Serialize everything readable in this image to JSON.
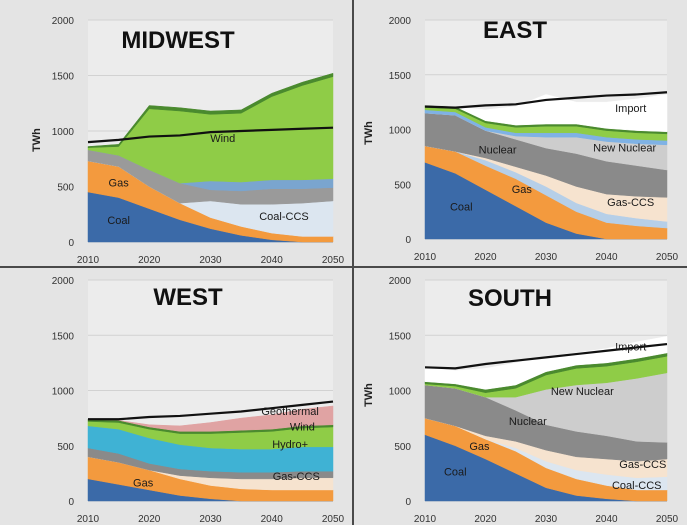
{
  "chart_data": [
    {
      "type": "area",
      "title": "MIDWEST",
      "ylabel": "TWh",
      "ylim": [
        0,
        2000
      ],
      "xlim": [
        2010,
        2050
      ],
      "x_ticks": [
        2010,
        2020,
        2030,
        2040,
        2050
      ],
      "y_ticks": [
        0,
        500,
        1000,
        1500,
        2000
      ],
      "x": [
        2010,
        2015,
        2020,
        2025,
        2030,
        2035,
        2040,
        2045,
        2050
      ],
      "series": [
        {
          "name": "Coal",
          "color": "#3b6aa8",
          "values": [
            450,
            400,
            300,
            200,
            120,
            60,
            20,
            0,
            0
          ]
        },
        {
          "name": "Gas",
          "color": "#f39a3e",
          "values": [
            280,
            280,
            200,
            150,
            100,
            80,
            60,
            50,
            50
          ]
        },
        {
          "name": "Coal-CCS",
          "color": "#dce6f0",
          "values": [
            0,
            0,
            0,
            0,
            150,
            200,
            260,
            300,
            320
          ]
        },
        {
          "color": "#9a9a9a",
          "values": [
            100,
            100,
            150,
            180,
            100,
            120,
            140,
            130,
            120
          ]
        },
        {
          "color": "#7aa5cf",
          "values": [
            0,
            0,
            0,
            0,
            80,
            80,
            80,
            80,
            80
          ]
        },
        {
          "name": "Wind",
          "color": "#8fcc47",
          "values": [
            20,
            80,
            550,
            650,
            600,
            620,
            750,
            850,
            920
          ]
        },
        {
          "color": "#4a8a2e",
          "values": [
            10,
            20,
            30,
            30,
            30,
            30,
            30,
            30,
            30
          ]
        }
      ],
      "demand": [
        900,
        920,
        950,
        960,
        990,
        1000,
        1010,
        1020,
        1030
      ],
      "labels": [
        {
          "text": "Wind",
          "x": 2032,
          "y": 900
        },
        {
          "text": "Gas",
          "x": 2015,
          "y": 500
        },
        {
          "text": "Coal",
          "x": 2015,
          "y": 160
        },
        {
          "text": "Coal-CCS",
          "x": 2042,
          "y": 200
        }
      ]
    },
    {
      "type": "area",
      "title": "EAST",
      "ylabel": "TWh",
      "ylim": [
        0,
        2000
      ],
      "xlim": [
        2010,
        2050
      ],
      "x_ticks": [
        2010,
        2020,
        2030,
        2040,
        2050
      ],
      "y_ticks": [
        0,
        500,
        1000,
        1500,
        2000
      ],
      "x": [
        2010,
        2015,
        2020,
        2025,
        2030,
        2035,
        2040,
        2045,
        2050
      ],
      "series": [
        {
          "name": "Coal",
          "color": "#3b6aa8",
          "values": [
            700,
            600,
            450,
            300,
            150,
            50,
            0,
            0,
            0
          ]
        },
        {
          "name": "Gas",
          "color": "#f39a3e",
          "values": [
            150,
            200,
            220,
            250,
            250,
            200,
            150,
            120,
            100
          ]
        },
        {
          "color": "#b6cfe8",
          "values": [
            0,
            0,
            50,
            60,
            80,
            80,
            80,
            70,
            60
          ]
        },
        {
          "name": "Gas-CCS",
          "color": "#f6e3cf",
          "values": [
            0,
            0,
            20,
            50,
            100,
            150,
            180,
            200,
            220
          ]
        },
        {
          "name": "Nuclear",
          "color": "#8a8a8a",
          "values": [
            300,
            330,
            250,
            250,
            250,
            300,
            300,
            280,
            250
          ]
        },
        {
          "name": "New Nuclear",
          "color": "#cdcdcd",
          "values": [
            0,
            0,
            0,
            30,
            100,
            150,
            180,
            200,
            230
          ]
        },
        {
          "color": "#7fb2e5",
          "values": [
            30,
            30,
            30,
            30,
            40,
            40,
            40,
            40,
            40
          ]
        },
        {
          "color": "#8fcc47",
          "values": [
            20,
            30,
            40,
            50,
            60,
            60,
            60,
            60,
            60
          ]
        },
        {
          "color": "#4a8a2e",
          "values": [
            20,
            20,
            20,
            20,
            20,
            20,
            20,
            20,
            20
          ]
        },
        {
          "name": "Import",
          "color": "#ffffff",
          "values": [
            0,
            0,
            100,
            170,
            270,
            200,
            240,
            290,
            340
          ]
        }
      ],
      "demand": [
        1210,
        1200,
        1220,
        1230,
        1270,
        1290,
        1310,
        1320,
        1340
      ],
      "labels": [
        {
          "text": "Import",
          "x": 2044,
          "y": 1160
        },
        {
          "text": "Nuclear",
          "x": 2022,
          "y": 780
        },
        {
          "text": "New Nuclear",
          "x": 2043,
          "y": 800
        },
        {
          "text": "Gas",
          "x": 2026,
          "y": 420
        },
        {
          "text": "Coal",
          "x": 2016,
          "y": 260
        },
        {
          "text": "Gas-CCS",
          "x": 2044,
          "y": 300
        }
      ]
    },
    {
      "type": "area",
      "title": "WEST",
      "ylabel": "",
      "ylim": [
        0,
        2000
      ],
      "xlim": [
        2010,
        2050
      ],
      "x_ticks": [
        2010,
        2020,
        2030,
        2040,
        2050
      ],
      "y_ticks": [
        0,
        500,
        1000,
        1500,
        2000
      ],
      "x": [
        2010,
        2015,
        2020,
        2025,
        2030,
        2035,
        2040,
        2045,
        2050
      ],
      "series": [
        {
          "color": "#3b6aa8",
          "values": [
            200,
            150,
            100,
            50,
            20,
            0,
            0,
            0,
            0
          ]
        },
        {
          "name": "Gas",
          "color": "#f39a3e",
          "values": [
            200,
            200,
            180,
            150,
            120,
            110,
            100,
            100,
            100
          ]
        },
        {
          "name": "Gas-CCS",
          "color": "#f6e3cf",
          "values": [
            0,
            0,
            0,
            30,
            70,
            90,
            100,
            110,
            110
          ]
        },
        {
          "color": "#8a8a8a",
          "values": [
            80,
            80,
            60,
            60,
            60,
            60,
            60,
            60,
            60
          ]
        },
        {
          "name": "Hydro+",
          "color": "#3fb2d4",
          "values": [
            200,
            220,
            230,
            220,
            210,
            210,
            210,
            220,
            220
          ]
        },
        {
          "name": "Wind",
          "color": "#8fcc47",
          "values": [
            40,
            60,
            80,
            100,
            130,
            150,
            160,
            170,
            180
          ]
        },
        {
          "color": "#4a8a2e",
          "values": [
            20,
            20,
            20,
            20,
            20,
            20,
            20,
            20,
            20
          ]
        },
        {
          "name": "Geothermal",
          "color": "#e0a3a3",
          "values": [
            0,
            0,
            20,
            50,
            80,
            110,
            130,
            150,
            170
          ]
        }
      ],
      "demand": [
        740,
        740,
        760,
        770,
        790,
        810,
        840,
        870,
        900
      ],
      "labels": [
        {
          "text": "Geothermal",
          "x": 2043,
          "y": 780
        },
        {
          "text": "Wind",
          "x": 2045,
          "y": 640
        },
        {
          "text": "Hydro+",
          "x": 2043,
          "y": 480
        },
        {
          "text": "Gas",
          "x": 2019,
          "y": 130
        },
        {
          "text": "Gas-CCS",
          "x": 2044,
          "y": 190
        }
      ]
    },
    {
      "type": "area",
      "title": "SOUTH",
      "ylabel": "TWh",
      "ylim": [
        0,
        2000
      ],
      "xlim": [
        2010,
        2050
      ],
      "x_ticks": [
        2010,
        2020,
        2030,
        2040,
        2050
      ],
      "y_ticks": [
        0,
        500,
        1000,
        1500,
        2000
      ],
      "x": [
        2010,
        2015,
        2020,
        2025,
        2030,
        2035,
        2040,
        2045,
        2050
      ],
      "series": [
        {
          "name": "Coal",
          "color": "#3b6aa8",
          "values": [
            600,
            500,
            380,
            250,
            120,
            50,
            20,
            0,
            0
          ]
        },
        {
          "name": "Gas",
          "color": "#f39a3e",
          "values": [
            150,
            180,
            180,
            200,
            180,
            150,
            120,
            100,
            100
          ]
        },
        {
          "name": "Coal-CCS",
          "color": "#dce6f0",
          "values": [
            0,
            0,
            0,
            30,
            60,
            80,
            100,
            110,
            120
          ]
        },
        {
          "name": "Gas-CCS",
          "color": "#f6e3cf",
          "values": [
            0,
            0,
            30,
            60,
            100,
            120,
            140,
            150,
            160
          ]
        },
        {
          "name": "Nuclear",
          "color": "#8a8a8a",
          "values": [
            300,
            340,
            350,
            280,
            230,
            230,
            210,
            180,
            150
          ]
        },
        {
          "name": "New Nuclear",
          "color": "#cdcdcd",
          "values": [
            0,
            0,
            0,
            120,
            320,
            420,
            480,
            570,
            630
          ]
        },
        {
          "color": "#8fcc47",
          "values": [
            10,
            20,
            40,
            80,
            130,
            150,
            150,
            150,
            150
          ]
        },
        {
          "color": "#4a8a2e",
          "values": [
            20,
            20,
            30,
            30,
            30,
            30,
            30,
            30,
            30
          ]
        },
        {
          "name": "Import",
          "color": "#ffffff",
          "values": [
            130,
            120,
            190,
            200,
            140,
            110,
            130,
            150,
            150
          ]
        }
      ],
      "demand": [
        1210,
        1200,
        1240,
        1270,
        1300,
        1330,
        1360,
        1390,
        1420
      ],
      "labels": [
        {
          "text": "Import",
          "x": 2044,
          "y": 1360
        },
        {
          "text": "New Nuclear",
          "x": 2036,
          "y": 960
        },
        {
          "text": "Nuclear",
          "x": 2027,
          "y": 690
        },
        {
          "text": "Gas",
          "x": 2019,
          "y": 460
        },
        {
          "text": "Coal",
          "x": 2015,
          "y": 230
        },
        {
          "text": "Gas-CCS",
          "x": 2046,
          "y": 300
        },
        {
          "text": "Coal-CCS",
          "x": 2045,
          "y": 110
        }
      ]
    }
  ]
}
